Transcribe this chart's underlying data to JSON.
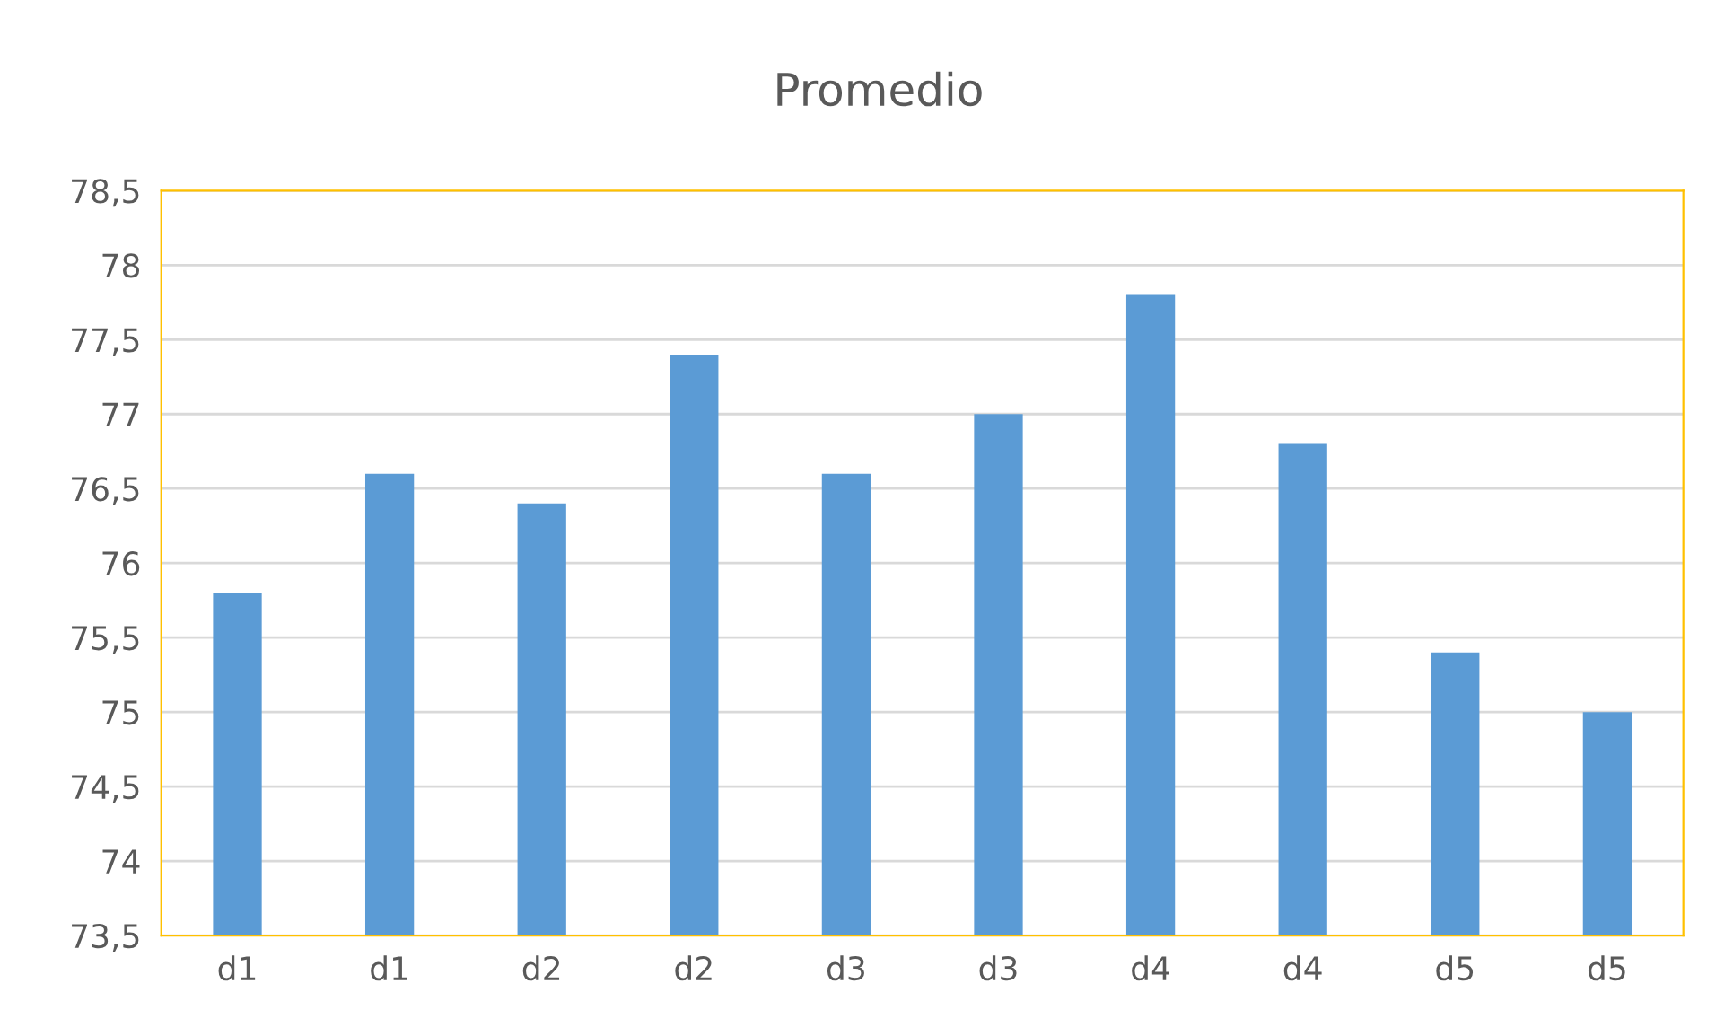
{
  "chart_data": {
    "type": "bar",
    "title": "Promedio",
    "categories": [
      "d1",
      "d1",
      "d2",
      "d2",
      "d3",
      "d3",
      "d4",
      "d4",
      "d5",
      "d5"
    ],
    "values": [
      75.8,
      76.6,
      76.4,
      77.4,
      76.6,
      77.0,
      77.8,
      76.8,
      75.4,
      75.0
    ],
    "color": "#5b9bd5",
    "ylim": [
      73.5,
      78.5
    ],
    "yticks": [
      {
        "value": 73.5,
        "label": "73,5"
      },
      74,
      {
        "value": 74.5,
        "label": "74,5"
      },
      75,
      {
        "value": 75.5,
        "label": "75,5"
      },
      76,
      {
        "value": 76.5,
        "label": "76,5"
      },
      77,
      {
        "value": 77.5,
        "label": "77,5"
      },
      78,
      {
        "value": 78.5,
        "label": "78,5"
      }
    ],
    "grid": "y"
  }
}
